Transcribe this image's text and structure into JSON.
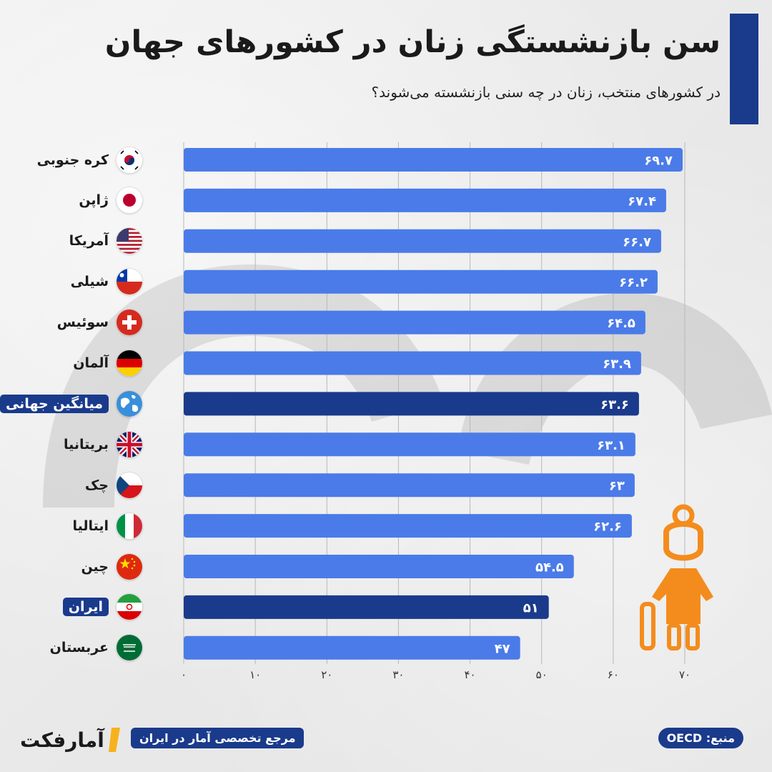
{
  "header": {
    "title": "سن بازنشستگی زنان در کشورهای جهان",
    "subtitle": "در کشورهای منتخب، زنان در چه سنی بازنشسته می‌شوند؟"
  },
  "chart_data": {
    "type": "bar",
    "orientation": "horizontal",
    "title": "سن بازنشستگی زنان در کشورهای جهان",
    "subtitle": "در کشورهای منتخب، زنان در چه سنی بازنشسته می‌شوند؟",
    "xlim": [
      0,
      70
    ],
    "x_ticks": [
      0,
      10,
      20,
      30,
      40,
      50,
      60,
      70
    ],
    "x_tick_labels": [
      "۰",
      "۱۰",
      "۲۰",
      "۳۰",
      "۴۰",
      "۵۰",
      "۶۰",
      "۷۰"
    ],
    "grid": "vertical",
    "categories": [
      "کره جنوبی",
      "ژاپن",
      "آمریکا",
      "شیلی",
      "سوئیس",
      "آلمان",
      "میانگین جهانی",
      "بریتانیا",
      "چک",
      "ایتالیا",
      "چین",
      "ایران",
      "عربستان"
    ],
    "flags": [
      "south-korea-flag",
      "japan-flag",
      "usa-flag",
      "chile-flag",
      "switzerland-flag",
      "germany-flag",
      "globe-icon",
      "uk-flag",
      "czech-flag",
      "italy-flag",
      "china-flag",
      "iran-flag",
      "saudi-flag"
    ],
    "values": [
      69.7,
      67.4,
      66.7,
      66.2,
      64.5,
      63.9,
      63.6,
      63.1,
      63,
      62.6,
      54.5,
      51,
      47
    ],
    "value_labels": [
      "۶۹.۷",
      "۶۷.۴",
      "۶۶.۷",
      "۶۶.۲",
      "۶۴.۵",
      "۶۳.۹",
      "۶۳.۶",
      "۶۳.۱",
      "۶۳",
      "۶۲.۶",
      "۵۴.۵",
      "۵۱",
      "۴۷"
    ],
    "highlighted": [
      false,
      false,
      false,
      false,
      false,
      false,
      true,
      false,
      false,
      false,
      false,
      true,
      false
    ],
    "colors": {
      "bar": "#4a7be8",
      "highlight": "#1a3a8c",
      "grid": "#b8b8b8",
      "accent": "#f48c1d"
    }
  },
  "footer": {
    "brand": "آمارفکت",
    "tagline": "مرجع تخصصی آمار در ایران",
    "source": "منبع: OECD"
  }
}
